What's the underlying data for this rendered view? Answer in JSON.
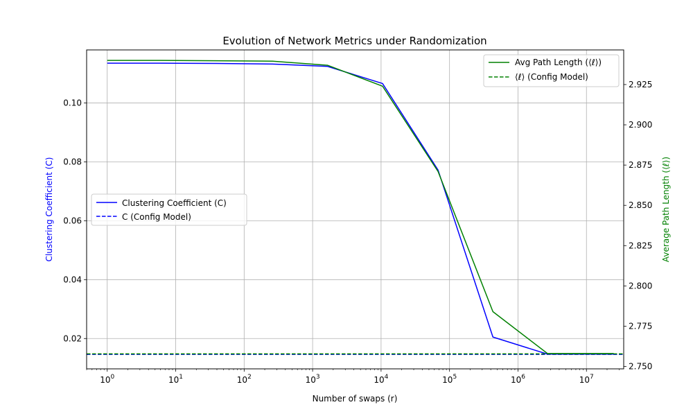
{
  "chart_data": {
    "type": "line",
    "title": "Evolution of Network Metrics under Randomization",
    "xlabel": "Number of swaps (r)",
    "ylabel_left": "Clustering Coefficient (C)",
    "ylabel_right": "Average Path Length (⟨ℓ⟩)",
    "xscale": "log",
    "xlim": [
      0.5,
      35000000
    ],
    "ylim_left": [
      0.0097,
      0.118
    ],
    "ylim_right": [
      2.7485,
      2.9465
    ],
    "x_ticks": [
      {
        "value": 1,
        "base": "10",
        "exp": "0"
      },
      {
        "value": 10,
        "base": "10",
        "exp": "1"
      },
      {
        "value": 100,
        "base": "10",
        "exp": "2"
      },
      {
        "value": 1000,
        "base": "10",
        "exp": "3"
      },
      {
        "value": 10000,
        "base": "10",
        "exp": "4"
      },
      {
        "value": 100000,
        "base": "10",
        "exp": "5"
      },
      {
        "value": 1000000,
        "base": "10",
        "exp": "6"
      },
      {
        "value": 10000000,
        "base": "10",
        "exp": "7"
      }
    ],
    "y_left_ticks": [
      {
        "value": 0.02,
        "label": "0.02"
      },
      {
        "value": 0.04,
        "label": "0.04"
      },
      {
        "value": 0.06,
        "label": "0.06"
      },
      {
        "value": 0.08,
        "label": "0.08"
      },
      {
        "value": 0.1,
        "label": "0.10"
      }
    ],
    "y_right_ticks": [
      {
        "value": 2.75,
        "label": "2.750"
      },
      {
        "value": 2.775,
        "label": "2.775"
      },
      {
        "value": 2.8,
        "label": "2.800"
      },
      {
        "value": 2.825,
        "label": "2.825"
      },
      {
        "value": 2.85,
        "label": "2.850"
      },
      {
        "value": 2.875,
        "label": "2.875"
      },
      {
        "value": 2.9,
        "label": "2.900"
      },
      {
        "value": 2.925,
        "label": "2.925"
      }
    ],
    "grid": true,
    "series": [
      {
        "name": "Clustering Coefficient (C)",
        "axis": "left",
        "color": "#0000ff",
        "style": "solid",
        "points": [
          [
            1,
            0.1135
          ],
          [
            6,
            0.1135
          ],
          [
            40,
            0.1134
          ],
          [
            260,
            0.1132
          ],
          [
            1650,
            0.1124
          ],
          [
            10500,
            0.1066
          ],
          [
            68000,
            0.0772
          ],
          [
            430000,
            0.0205
          ],
          [
            2700000,
            0.0147
          ],
          [
            17000000,
            0.0147
          ],
          [
            25000000,
            0.0147
          ]
        ]
      },
      {
        "name": "C (Config Model)",
        "axis": "left",
        "color": "#0000ff",
        "style": "dashed",
        "constant": 0.0146
      },
      {
        "name": "Avg Path Length (⟨ℓ⟩)",
        "axis": "right",
        "color": "#008000",
        "style": "solid",
        "points": [
          [
            1,
            2.94
          ],
          [
            6,
            2.94
          ],
          [
            40,
            2.9398
          ],
          [
            260,
            2.9395
          ],
          [
            1650,
            2.937
          ],
          [
            10500,
            2.924
          ],
          [
            68000,
            2.871
          ],
          [
            430000,
            2.784
          ],
          [
            2700000,
            2.758
          ],
          [
            17000000,
            2.758
          ],
          [
            25000000,
            2.758
          ]
        ]
      },
      {
        "name": "⟨ℓ⟩ (Config Model)",
        "axis": "right",
        "color": "#008000",
        "style": "dashed",
        "constant": 2.7578
      }
    ],
    "legend_left": {
      "placement": "center-left",
      "entries": [
        "Clustering Coefficient (C)",
        "C (Config Model)"
      ]
    },
    "legend_right": {
      "placement": "top-right",
      "entries": [
        "Avg Path Length (⟨ℓ⟩)",
        "⟨ℓ⟩ (Config Model)"
      ]
    }
  }
}
